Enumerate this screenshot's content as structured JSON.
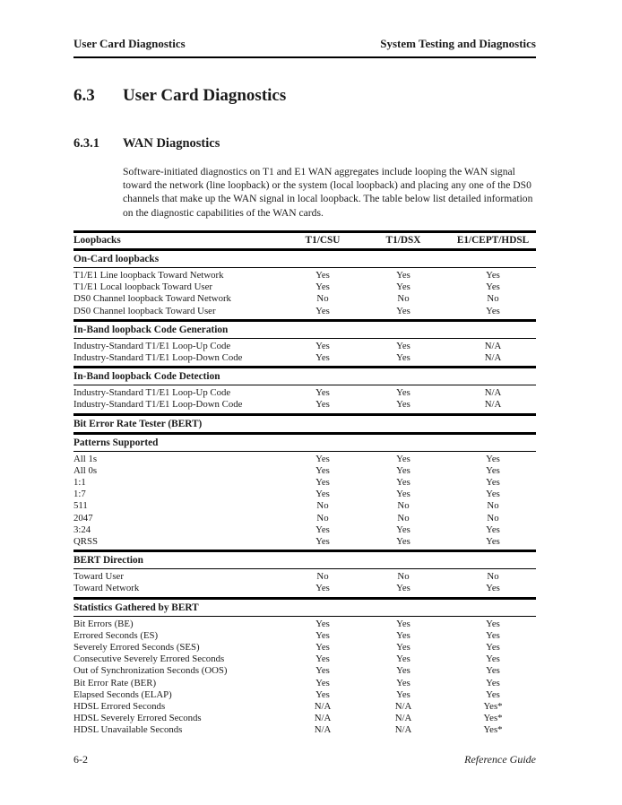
{
  "header": {
    "left": "User Card Diagnostics",
    "right": "System Testing and Diagnostics"
  },
  "section": {
    "number": "6.3",
    "title": "User Card Diagnostics"
  },
  "subsection": {
    "number": "6.3.1",
    "title": "WAN Diagnostics"
  },
  "paragraph": "Software-initiated diagnostics on T1 and E1 WAN aggregates include looping the WAN signal toward the network (line loopback) or the system (local loopback) and placing any one of the DS0 channels that make up the WAN signal in local loopback. The table below list detailed information on the diagnostic capabilities of the WAN cards.",
  "table": {
    "columns": [
      "Loopbacks",
      "T1/CSU",
      "T1/DSX",
      "E1/CEPT/HDSL"
    ],
    "sections": [
      {
        "title": "On-Card loopbacks",
        "rows": [
          {
            "label": "T1/E1 Line loopback Toward Network",
            "values": [
              "Yes",
              "Yes",
              "Yes"
            ]
          },
          {
            "label": "T1/E1 Local loopback Toward User",
            "values": [
              "Yes",
              "Yes",
              "Yes"
            ]
          },
          {
            "label": "DS0 Channel loopback Toward Network",
            "values": [
              "No",
              "No",
              "No"
            ]
          },
          {
            "label": "DS0 Channel loopback Toward User",
            "values": [
              "Yes",
              "Yes",
              "Yes"
            ]
          }
        ]
      },
      {
        "title": "In-Band loopback Code Generation",
        "rows": [
          {
            "label": "Industry-Standard T1/E1 Loop-Up Code",
            "values": [
              "Yes",
              "Yes",
              "N/A"
            ]
          },
          {
            "label": "Industry-Standard T1/E1 Loop-Down Code",
            "values": [
              "Yes",
              "Yes",
              "N/A"
            ]
          }
        ]
      },
      {
        "title": "In-Band loopback Code Detection",
        "rows": [
          {
            "label": "Industry-Standard T1/E1 Loop-Up Code",
            "values": [
              "Yes",
              "Yes",
              "N/A"
            ]
          },
          {
            "label": "Industry-Standard T1/E1 Loop-Down Code",
            "values": [
              "Yes",
              "Yes",
              "N/A"
            ]
          }
        ]
      },
      {
        "title": "Bit Error Rate Tester (BERT)",
        "rows": []
      },
      {
        "title": "Patterns Supported",
        "rows": [
          {
            "label": "All 1s",
            "values": [
              "Yes",
              "Yes",
              "Yes"
            ]
          },
          {
            "label": "All 0s",
            "values": [
              "Yes",
              "Yes",
              "Yes"
            ]
          },
          {
            "label": "1:1",
            "values": [
              "Yes",
              "Yes",
              "Yes"
            ]
          },
          {
            "label": "1:7",
            "values": [
              "Yes",
              "Yes",
              "Yes"
            ]
          },
          {
            "label": "511",
            "values": [
              "No",
              "No",
              "No"
            ]
          },
          {
            "label": "2047",
            "values": [
              "No",
              "No",
              "No"
            ]
          },
          {
            "label": "3:24",
            "values": [
              "Yes",
              "Yes",
              "Yes"
            ]
          },
          {
            "label": "QRSS",
            "values": [
              "Yes",
              "Yes",
              "Yes"
            ]
          }
        ]
      },
      {
        "title": "BERT Direction",
        "rows": [
          {
            "label": "Toward User",
            "values": [
              "No",
              "No",
              "No"
            ]
          },
          {
            "label": "Toward Network",
            "values": [
              "Yes",
              "Yes",
              "Yes"
            ]
          }
        ]
      },
      {
        "title": "Statistics Gathered by BERT",
        "rows": [
          {
            "label": "Bit Errors (BE)",
            "values": [
              "Yes",
              "Yes",
              "Yes"
            ]
          },
          {
            "label": "Errored Seconds (ES)",
            "values": [
              "Yes",
              "Yes",
              "Yes"
            ]
          },
          {
            "label": "Severely Errored Seconds (SES)",
            "values": [
              "Yes",
              "Yes",
              "Yes"
            ]
          },
          {
            "label": "Consecutive Severely Errored Seconds",
            "values": [
              "Yes",
              "Yes",
              "Yes"
            ]
          },
          {
            "label": "Out of Synchronization Seconds (OOS)",
            "values": [
              "Yes",
              "Yes",
              "Yes"
            ]
          },
          {
            "label": "Bit Error Rate (BER)",
            "values": [
              "Yes",
              "Yes",
              "Yes"
            ]
          },
          {
            "label": "Elapsed Seconds (ELAP)",
            "values": [
              "Yes",
              "Yes",
              "Yes"
            ]
          },
          {
            "label": "HDSL Errored Seconds",
            "values": [
              "N/A",
              "N/A",
              "Yes*"
            ]
          },
          {
            "label": "HDSL Severely Errored Seconds",
            "values": [
              "N/A",
              "N/A",
              "Yes*"
            ]
          },
          {
            "label": "HDSL Unavailable Seconds",
            "values": [
              "N/A",
              "N/A",
              "Yes*"
            ]
          }
        ]
      }
    ]
  },
  "footer": {
    "left": "6-2",
    "right": "Reference Guide"
  }
}
